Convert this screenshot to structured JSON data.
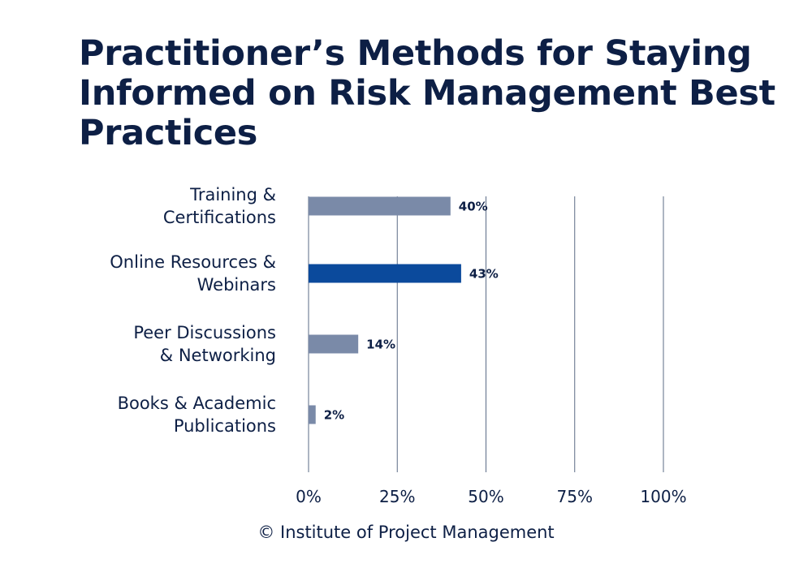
{
  "chart_data": {
    "type": "bar",
    "orientation": "horizontal",
    "title": "Practitioner’s Methods for Staying Informed on Risk Management Best Practices",
    "categories": [
      [
        "Training &",
        "Certifications"
      ],
      [
        "Online Resources &",
        "Webinars"
      ],
      [
        "Peer Discussions",
        "& Networking"
      ],
      [
        "Books & Academic",
        "Publications"
      ]
    ],
    "values": [
      40,
      43,
      14,
      2
    ],
    "data_labels": [
      "40%",
      "43%",
      "14%",
      "2%"
    ],
    "highlight_index": 1,
    "xlim": [
      0,
      100
    ],
    "xticks": [
      0,
      25,
      50,
      75,
      100
    ],
    "xtick_labels": [
      "0%",
      "25%",
      "50%",
      "75%",
      "100%"
    ],
    "grid": "vertical",
    "colors": {
      "bar": "#7a8aa8",
      "highlight": "#0b4a9c",
      "grid": "#5b6b86",
      "text": "#0d1f45"
    }
  },
  "footer": "© Institute of Project Management"
}
